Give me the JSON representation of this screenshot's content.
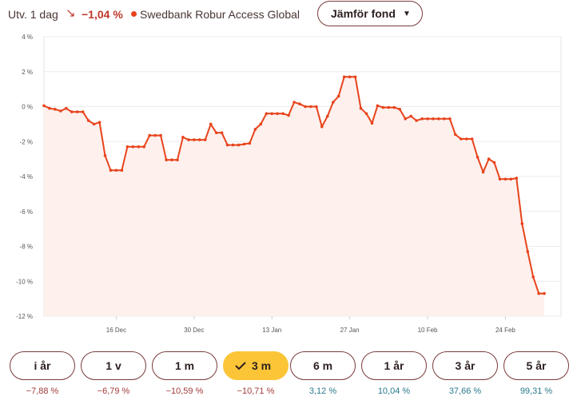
{
  "header": {
    "utv_label": "Utv. 1 dag",
    "utv_arrow": "↘",
    "utv_value": "−1,04 %",
    "fund_name": "Swedbank Robur Access Global",
    "compare_label": "Jämför fond",
    "compare_caret": "▼"
  },
  "colors": {
    "line": "#e8431c",
    "area": "#fdf0ed",
    "negative": "#a23b3b",
    "positive": "#2a7a8c",
    "active_period": "#fbc537",
    "border": "#7a3a3a"
  },
  "periods": [
    {
      "label": "i år",
      "return": "−7,88 %",
      "sign": "negative",
      "active": false
    },
    {
      "label": "1 v",
      "return": "−6,79 %",
      "sign": "negative",
      "active": false
    },
    {
      "label": "1 m",
      "return": "−10,59 %",
      "sign": "negative",
      "active": false
    },
    {
      "label": "3 m",
      "return": "−10,71 %",
      "sign": "negative",
      "active": true
    },
    {
      "label": "6 m",
      "return": "3,12 %",
      "sign": "positive",
      "active": false
    },
    {
      "label": "1 år",
      "return": "10,04 %",
      "sign": "positive",
      "active": false
    },
    {
      "label": "3 år",
      "return": "37,66 %",
      "sign": "positive",
      "active": false
    },
    {
      "label": "5 år",
      "return": "99,31 %",
      "sign": "positive",
      "active": false
    }
  ],
  "chart_data": {
    "type": "area",
    "title": "",
    "xlabel": "",
    "ylabel": "",
    "ylim": [
      -12,
      4
    ],
    "yticks": [
      4,
      2,
      0,
      -2,
      -4,
      -6,
      -8,
      -10,
      -12
    ],
    "ytick_labels": [
      "4 %",
      "2 %",
      "0 %",
      "-2 %",
      "-4 %",
      "-6 %",
      "-8 %",
      "-10 %",
      "-12 %"
    ],
    "xlim": [
      "2024-12-03",
      "2025-03-06"
    ],
    "xticks": [
      "2024-12-16",
      "2024-12-30",
      "2025-01-13",
      "2025-01-27",
      "2025-02-10",
      "2025-02-24"
    ],
    "xtick_labels": [
      "16 Dec",
      "30 Dec",
      "13 Jan",
      "27 Jan",
      "10 Feb",
      "24 Feb"
    ],
    "grid": true,
    "series": [
      {
        "points": [
          [
            "2024-12-03",
            0.05
          ],
          [
            "2024-12-04",
            -0.1
          ],
          [
            "2024-12-05",
            -0.15
          ],
          [
            "2024-12-06",
            -0.25
          ],
          [
            "2024-12-07",
            -0.1
          ],
          [
            "2024-12-08",
            -0.3
          ],
          [
            "2024-12-09",
            -0.3
          ],
          [
            "2024-12-10",
            -0.3
          ],
          [
            "2024-12-11",
            -0.8
          ],
          [
            "2024-12-12",
            -1.0
          ],
          [
            "2024-12-13",
            -0.9
          ],
          [
            "2024-12-14",
            -2.8
          ],
          [
            "2024-12-15",
            -3.65
          ],
          [
            "2024-12-16",
            -3.65
          ],
          [
            "2024-12-17",
            -3.65
          ],
          [
            "2024-12-18",
            -2.3
          ],
          [
            "2024-12-19",
            -2.3
          ],
          [
            "2024-12-20",
            -2.3
          ],
          [
            "2024-12-21",
            -2.3
          ],
          [
            "2024-12-22",
            -1.65
          ],
          [
            "2024-12-23",
            -1.65
          ],
          [
            "2024-12-24",
            -1.65
          ],
          [
            "2024-12-25",
            -3.05
          ],
          [
            "2024-12-26",
            -3.05
          ],
          [
            "2024-12-27",
            -3.05
          ],
          [
            "2024-12-28",
            -1.75
          ],
          [
            "2024-12-29",
            -1.9
          ],
          [
            "2024-12-30",
            -1.9
          ],
          [
            "2024-12-31",
            -1.9
          ],
          [
            "2025-01-01",
            -1.9
          ],
          [
            "2025-01-02",
            -1.0
          ],
          [
            "2025-01-03",
            -1.5
          ],
          [
            "2025-01-04",
            -1.5
          ],
          [
            "2025-01-05",
            -2.2
          ],
          [
            "2025-01-06",
            -2.2
          ],
          [
            "2025-01-07",
            -2.2
          ],
          [
            "2025-01-08",
            -2.15
          ],
          [
            "2025-01-09",
            -2.1
          ],
          [
            "2025-01-10",
            -1.3
          ],
          [
            "2025-01-11",
            -1.0
          ],
          [
            "2025-01-12",
            -0.4
          ],
          [
            "2025-01-13",
            -0.4
          ],
          [
            "2025-01-14",
            -0.4
          ],
          [
            "2025-01-15",
            -0.4
          ],
          [
            "2025-01-16",
            -0.5
          ],
          [
            "2025-01-17",
            0.25
          ],
          [
            "2025-01-18",
            0.15
          ],
          [
            "2025-01-19",
            0.0
          ],
          [
            "2025-01-20",
            0.0
          ],
          [
            "2025-01-21",
            0.0
          ],
          [
            "2025-01-22",
            -1.15
          ],
          [
            "2025-01-23",
            -0.55
          ],
          [
            "2025-01-24",
            0.25
          ],
          [
            "2025-01-25",
            0.6
          ],
          [
            "2025-01-26",
            1.7
          ],
          [
            "2025-01-27",
            1.7
          ],
          [
            "2025-01-28",
            1.7
          ],
          [
            "2025-01-29",
            -0.1
          ],
          [
            "2025-01-30",
            -0.4
          ],
          [
            "2025-01-31",
            -0.95
          ],
          [
            "2025-02-01",
            0.05
          ],
          [
            "2025-02-02",
            -0.05
          ],
          [
            "2025-02-03",
            -0.05
          ],
          [
            "2025-02-04",
            -0.05
          ],
          [
            "2025-02-05",
            -0.15
          ],
          [
            "2025-02-06",
            -0.7
          ],
          [
            "2025-02-07",
            -0.55
          ],
          [
            "2025-02-08",
            -0.8
          ],
          [
            "2025-02-09",
            -0.7
          ],
          [
            "2025-02-10",
            -0.7
          ],
          [
            "2025-02-11",
            -0.7
          ],
          [
            "2025-02-12",
            -0.7
          ],
          [
            "2025-02-13",
            -0.7
          ],
          [
            "2025-02-14",
            -0.7
          ],
          [
            "2025-02-15",
            -1.6
          ],
          [
            "2025-02-16",
            -1.85
          ],
          [
            "2025-02-17",
            -1.85
          ],
          [
            "2025-02-18",
            -1.85
          ],
          [
            "2025-02-19",
            -2.9
          ],
          [
            "2025-02-20",
            -3.75
          ],
          [
            "2025-02-21",
            -3.0
          ],
          [
            "2025-02-22",
            -3.2
          ],
          [
            "2025-02-23",
            -4.15
          ],
          [
            "2025-02-24",
            -4.15
          ],
          [
            "2025-02-25",
            -4.15
          ],
          [
            "2025-02-26",
            -4.1
          ],
          [
            "2025-02-27",
            -6.7
          ],
          [
            "2025-02-28",
            -8.3
          ],
          [
            "2025-03-01",
            -9.75
          ],
          [
            "2025-03-02",
            -10.7
          ],
          [
            "2025-03-03",
            -10.7
          ]
        ]
      }
    ]
  }
}
